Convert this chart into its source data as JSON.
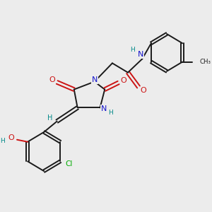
{
  "bg_color": "#ececec",
  "bond_color": "#1a1a1a",
  "N_color": "#1414cc",
  "O_color": "#cc1414",
  "Cl_color": "#00aa00",
  "H_color": "#008888",
  "font_size": 7.0,
  "line_width": 1.4,
  "fig_size": [
    3.0,
    3.0
  ],
  "dpi": 100,
  "xlim": [
    0,
    10
  ],
  "ylim": [
    0,
    10
  ]
}
